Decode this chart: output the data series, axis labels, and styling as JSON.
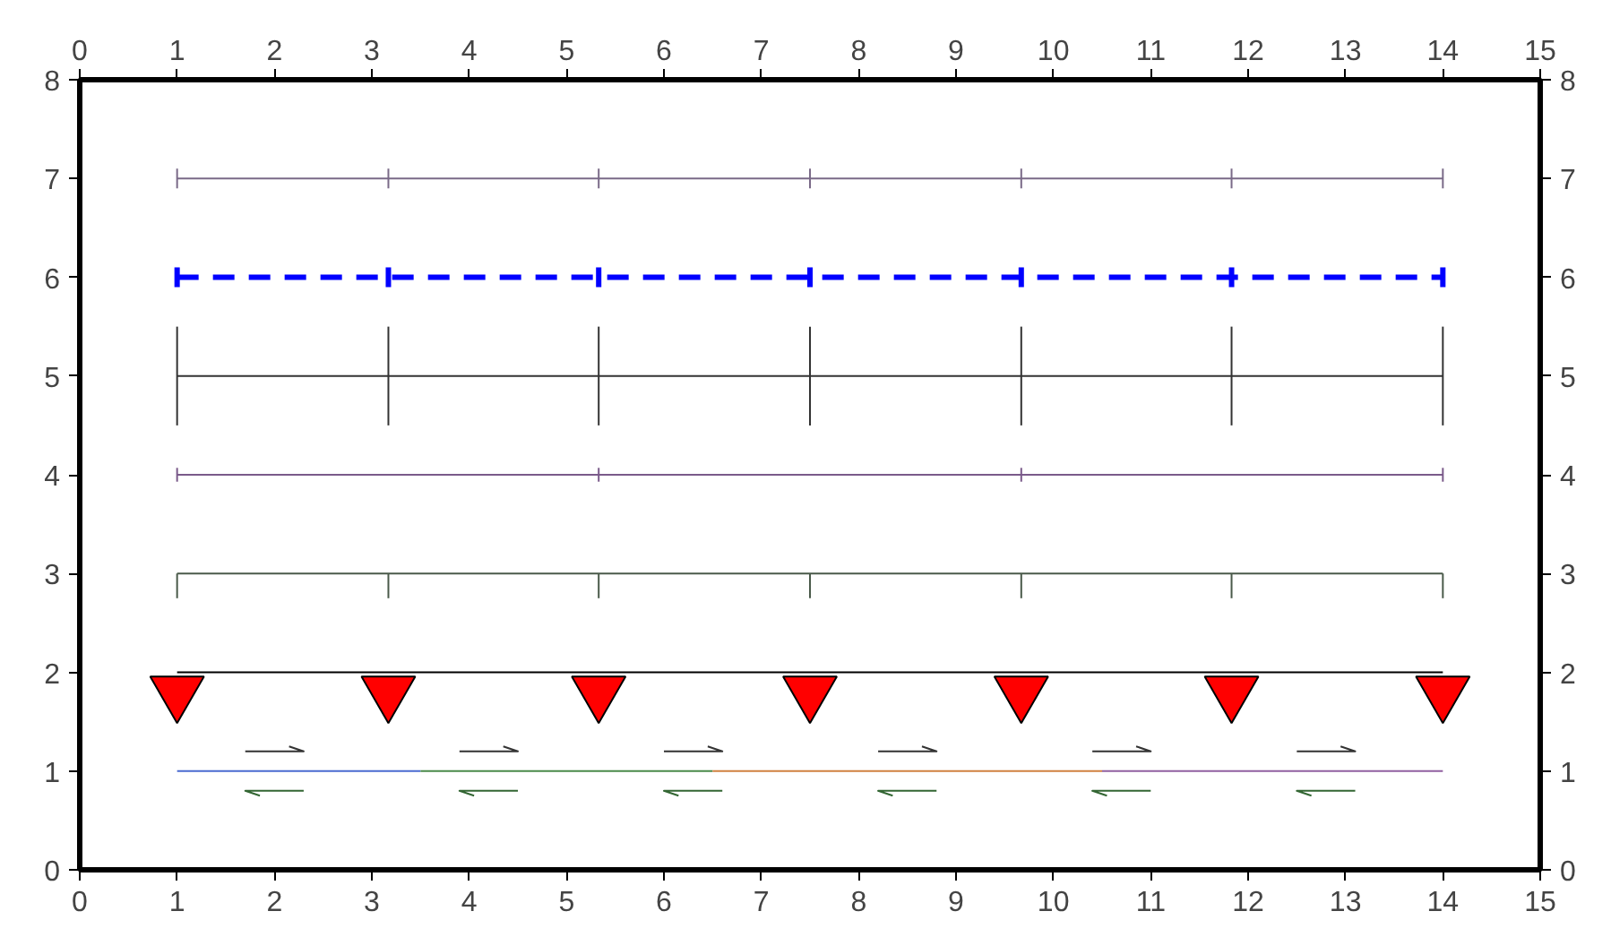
{
  "chart_data": {
    "type": "line",
    "xlim": [
      0,
      15
    ],
    "xticks": [
      0,
      1,
      2,
      3,
      4,
      5,
      6,
      7,
      8,
      9,
      10,
      11,
      12,
      13,
      14,
      15
    ],
    "x2lim": [
      0,
      15
    ],
    "x2ticks": [
      0,
      1,
      2,
      3,
      4,
      5,
      6,
      7,
      8,
      9,
      10,
      11,
      12,
      13,
      14,
      15
    ],
    "ylim": [
      0,
      8
    ],
    "yticks": [
      0,
      1,
      2,
      3,
      4,
      5,
      6,
      7,
      8
    ],
    "y2lim": [
      0,
      8
    ],
    "y2ticks": [
      0,
      1,
      2,
      3,
      4,
      5,
      6,
      7,
      8
    ],
    "grid": false,
    "line_style": "solid",
    "marker": "none",
    "series": [
      {
        "color": "#7a6a88",
        "x": [
          1,
          3.17,
          5.33,
          7.5,
          9.67,
          11.83,
          14
        ],
        "values": [
          7,
          7,
          7,
          7,
          7,
          7,
          7
        ],
        "errors": [
          0.1,
          0.1,
          0.1,
          0.1,
          0.1,
          0.1,
          0.1
        ]
      },
      {
        "color": "#0000ff",
        "line_style": "dashed",
        "x": [
          1,
          3.17,
          5.33,
          7.5,
          9.67,
          11.83,
          14
        ],
        "values": [
          6,
          6,
          6,
          6,
          6,
          6,
          6
        ],
        "errors": [
          0.1,
          0.1,
          0.1,
          0.1,
          0.1,
          0.1,
          0.1
        ]
      },
      {
        "color": "#333333",
        "x": [
          1,
          3.17,
          5.33,
          7.5,
          9.67,
          11.83,
          14
        ],
        "values": [
          5,
          5,
          5,
          5,
          5,
          5,
          5
        ],
        "errors": [
          0.5,
          0.5,
          0.5,
          0.5,
          0.5,
          0.5,
          0.5
        ]
      },
      {
        "color": "#7a5a8a",
        "x": [
          1,
          3.17,
          5.33,
          7.5,
          9.67,
          11.83,
          14
        ],
        "values": [
          4,
          4,
          4,
          4,
          4,
          4,
          4
        ],
        "errors": [
          0.07,
          null,
          0.07,
          null,
          0.07,
          null,
          0.07
        ]
      },
      {
        "color": "#4a5a4a",
        "x": [
          1,
          3.17,
          5.33,
          7.5,
          9.67,
          11.83,
          14
        ],
        "values": [
          3,
          3,
          3,
          3,
          3,
          3,
          3
        ],
        "errors": [
          [
            2.75,
            3
          ],
          [
            2.75,
            3
          ],
          [
            2.75,
            3
          ],
          [
            2.75,
            3
          ],
          [
            2.75,
            3
          ],
          [
            2.75,
            3
          ],
          [
            2.75,
            3
          ]
        ]
      },
      {
        "color": "#000000",
        "x": [
          1,
          14
        ],
        "values": [
          2,
          2
        ]
      },
      {
        "type": "scatter",
        "marker": "triangle",
        "color": "#ff0000",
        "x": [
          1,
          3.17,
          5.33,
          7.5,
          9.67,
          11.83,
          14
        ],
        "values": [
          1.8,
          1.8,
          1.8,
          1.8,
          1.8,
          1.8,
          1.8
        ]
      },
      {
        "color": "#4a6ad0",
        "x": [
          1,
          3.5
        ],
        "values": [
          1,
          1
        ]
      },
      {
        "color": "#4a8a4a",
        "x": [
          3.5,
          6.5
        ],
        "values": [
          1,
          1
        ]
      },
      {
        "color": "#d08040",
        "x": [
          6.5,
          10.5
        ],
        "values": [
          1,
          1
        ]
      },
      {
        "color": "#9060a0",
        "x": [
          10.5,
          14
        ],
        "values": [
          1,
          1
        ]
      },
      {
        "color": "#333333",
        "x": [
          1.7,
          2.3,
          2.15,
          null,
          3.9,
          4.5,
          4.35,
          null,
          6.0,
          6.6,
          6.45,
          null,
          8.2,
          8.8,
          8.65,
          null,
          10.4,
          11.0,
          10.85,
          null,
          12.5,
          13.1,
          12.95
        ],
        "values": [
          1.2,
          1.2,
          1.25,
          null,
          1.2,
          1.2,
          1.25,
          null,
          1.2,
          1.2,
          1.25,
          null,
          1.2,
          1.2,
          1.25,
          null,
          1.2,
          1.2,
          1.25,
          null,
          1.2,
          1.2,
          1.25
        ]
      },
      {
        "color": "#336633",
        "x": [
          1.85,
          1.7,
          2.3,
          null,
          4.05,
          3.9,
          4.5,
          null,
          6.15,
          6.0,
          6.6,
          null,
          8.35,
          8.2,
          8.8,
          null,
          10.55,
          10.4,
          11.0,
          null,
          12.65,
          12.5,
          13.1
        ],
        "values": [
          0.75,
          0.8,
          0.8,
          null,
          0.75,
          0.8,
          0.8,
          null,
          0.75,
          0.8,
          0.8,
          null,
          0.75,
          0.8,
          0.8,
          null,
          0.75,
          0.8,
          0.8,
          null,
          0.75,
          0.8,
          0.8
        ]
      }
    ]
  }
}
